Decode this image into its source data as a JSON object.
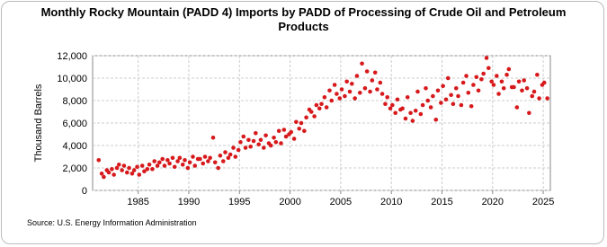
{
  "chart_data": {
    "type": "scatter",
    "title": "Monthly Rocky Mountain (PADD 4) Imports by PADD of Processing of Crude Oil and Petroleum Products",
    "y_label": "Thousand Barrels",
    "source": "Source: U.S. Energy Information Administration",
    "xlim": [
      1980.5,
      2025.7
    ],
    "xticks": [
      1985,
      1990,
      1995,
      2000,
      2005,
      2010,
      2015,
      2020,
      2025
    ],
    "ylim": [
      0,
      12000
    ],
    "yticks": [
      0,
      {
        "value": 2000,
        "label": "2,000"
      },
      {
        "value": 4000,
        "label": "4,000"
      },
      {
        "value": 6000,
        "label": "6,000"
      },
      {
        "value": 8000,
        "label": "8,000"
      },
      {
        "value": 10000,
        "label": "10,000"
      },
      {
        "value": 12000,
        "label": "12,000"
      }
    ],
    "grid": true,
    "series": [
      {
        "color": "#d7191c",
        "x": [
          1981.1,
          1981.4,
          1981.6,
          1981.9,
          1982.1,
          1982.4,
          1982.6,
          1982.9,
          1983.1,
          1983.4,
          1983.6,
          1983.9,
          1984.1,
          1984.4,
          1984.6,
          1984.9,
          1985.1,
          1985.4,
          1985.6,
          1985.9,
          1986.1,
          1986.4,
          1986.6,
          1986.9,
          1987.1,
          1987.4,
          1987.6,
          1987.9,
          1988.1,
          1988.4,
          1988.6,
          1988.9,
          1989.1,
          1989.4,
          1989.6,
          1989.9,
          1990.1,
          1990.4,
          1990.6,
          1990.9,
          1991.1,
          1991.4,
          1991.6,
          1991.9,
          1992.1,
          1992.4,
          1992.6,
          1992.9,
          1993.1,
          1993.4,
          1993.6,
          1993.9,
          1994.1,
          1994.4,
          1994.6,
          1994.9,
          1995.1,
          1995.4,
          1995.6,
          1995.9,
          1996.1,
          1996.4,
          1996.6,
          1996.9,
          1997.1,
          1997.4,
          1997.6,
          1997.9,
          1998.1,
          1998.4,
          1998.6,
          1998.9,
          1999.1,
          1999.4,
          1999.6,
          1999.9,
          2000.1,
          2000.4,
          2000.6,
          2000.9,
          2001.1,
          2001.4,
          2001.6,
          2001.9,
          2002.1,
          2002.4,
          2002.6,
          2002.9,
          2003.1,
          2003.4,
          2003.6,
          2003.9,
          2004.1,
          2004.4,
          2004.6,
          2004.9,
          2005.1,
          2005.4,
          2005.6,
          2005.9,
          2006.1,
          2006.4,
          2006.6,
          2006.9,
          2007.1,
          2007.4,
          2007.6,
          2007.9,
          2008.1,
          2008.4,
          2008.6,
          2008.9,
          2009.1,
          2009.4,
          2009.6,
          2009.9,
          2010.1,
          2010.4,
          2010.6,
          2010.9,
          2011.1,
          2011.4,
          2011.6,
          2011.9,
          2012.1,
          2012.4,
          2012.6,
          2012.9,
          2013.1,
          2013.4,
          2013.6,
          2013.9,
          2014.1,
          2014.4,
          2014.6,
          2014.9,
          2015.1,
          2015.4,
          2015.6,
          2015.9,
          2016.1,
          2016.4,
          2016.6,
          2016.9,
          2017.1,
          2017.4,
          2017.6,
          2017.9,
          2018.1,
          2018.4,
          2018.6,
          2018.9,
          2019.1,
          2019.4,
          2019.6,
          2019.9,
          2020.1,
          2020.4,
          2020.6,
          2020.9,
          2021.1,
          2021.4,
          2021.6,
          2021.9,
          2022.1,
          2022.4,
          2022.6,
          2022.9,
          2023.1,
          2023.4,
          2023.6,
          2023.9,
          2024.1,
          2024.4,
          2024.6,
          2024.9,
          2025.1,
          2025.4
        ],
        "values": [
          2700,
          1500,
          1200,
          1800,
          1600,
          1900,
          1400,
          2000,
          2300,
          1800,
          2200,
          1600,
          2000,
          1500,
          1800,
          2100,
          1400,
          2200,
          1700,
          1900,
          2300,
          1900,
          2600,
          2200,
          2500,
          2800,
          2200,
          2700,
          2400,
          2900,
          2100,
          2600,
          2900,
          2300,
          2700,
          2000,
          2500,
          3000,
          2200,
          2800,
          2800,
          2400,
          3000,
          2600,
          2900,
          4700,
          2500,
          2000,
          3100,
          2600,
          3400,
          2900,
          3200,
          3800,
          3000,
          3600,
          4300,
          4800,
          3800,
          4500,
          3900,
          4400,
          5100,
          4100,
          4500,
          3800,
          4900,
          4200,
          4000,
          4700,
          4300,
          5300,
          4200,
          5400,
          4800,
          5000,
          5200,
          4600,
          6100,
          5500,
          6000,
          5300,
          6500,
          7200,
          7000,
          6600,
          7600,
          7300,
          7700,
          8300,
          7400,
          8900,
          8000,
          9400,
          8600,
          8200,
          9000,
          8400,
          9700,
          8800,
          9500,
          8200,
          10200,
          8700,
          11300,
          9100,
          10600,
          8800,
          9800,
          10500,
          9000,
          9600,
          8600,
          7700,
          8300,
          7300,
          7600,
          6900,
          8100,
          7200,
          7300,
          6400,
          8300,
          6900,
          6200,
          7100,
          8800,
          6800,
          7600,
          9100,
          8000,
          7400,
          8400,
          6300,
          8900,
          7800,
          9300,
          8100,
          10000,
          8500,
          7700,
          9100,
          8400,
          7600,
          9600,
          10200,
          8700,
          7500,
          9400,
          10100,
          8900,
          9900,
          10400,
          11800,
          10900,
          9700,
          9400,
          10200,
          8600,
          9700,
          9100,
          10300,
          10800,
          9200,
          9200,
          7400,
          9700,
          8900,
          9800,
          9100,
          6900,
          8400,
          8800,
          10300,
          8200,
          9400,
          9600,
          8200
        ]
      }
    ]
  }
}
